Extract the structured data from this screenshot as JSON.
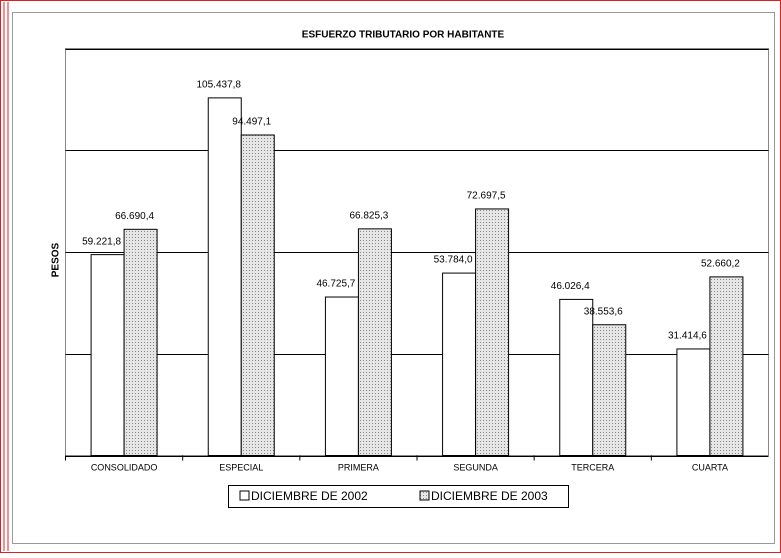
{
  "chart_data": {
    "type": "bar",
    "title": "ESFUERZO TRIBUTARIO POR HABITANTE",
    "y_label": "PESOS",
    "categories": [
      "CONSOLIDADO",
      "ESPECIAL",
      "PRIMERA",
      "SEGUNDA",
      "TERCERA",
      "CUARTA"
    ],
    "series": [
      {
        "name": "DICIEMBRE DE 2002",
        "color": "#ffffff",
        "values": [
          59221.8,
          105437.8,
          46725.7,
          53784.0,
          46026.4,
          31414.6
        ],
        "value_labels": [
          "59.221,8",
          "105.437,8",
          "46.725,7",
          "53.784,0",
          "46.026,4",
          "31.414,6"
        ]
      },
      {
        "name": "DICIEMBRE DE 2003",
        "color": "#d4d4d4",
        "values": [
          66690.4,
          94497.1,
          66825.3,
          72697.5,
          38553.6,
          52660.2
        ],
        "value_labels": [
          "66.690,4",
          "94.497,1",
          "66.825,3",
          "72.697,5",
          "38.553,6",
          "52.660,2"
        ]
      }
    ],
    "ylim": [
      0,
      120000
    ],
    "yticks": [
      0,
      30000,
      60000,
      90000,
      120000
    ],
    "grid": true,
    "legend": "bottom"
  }
}
